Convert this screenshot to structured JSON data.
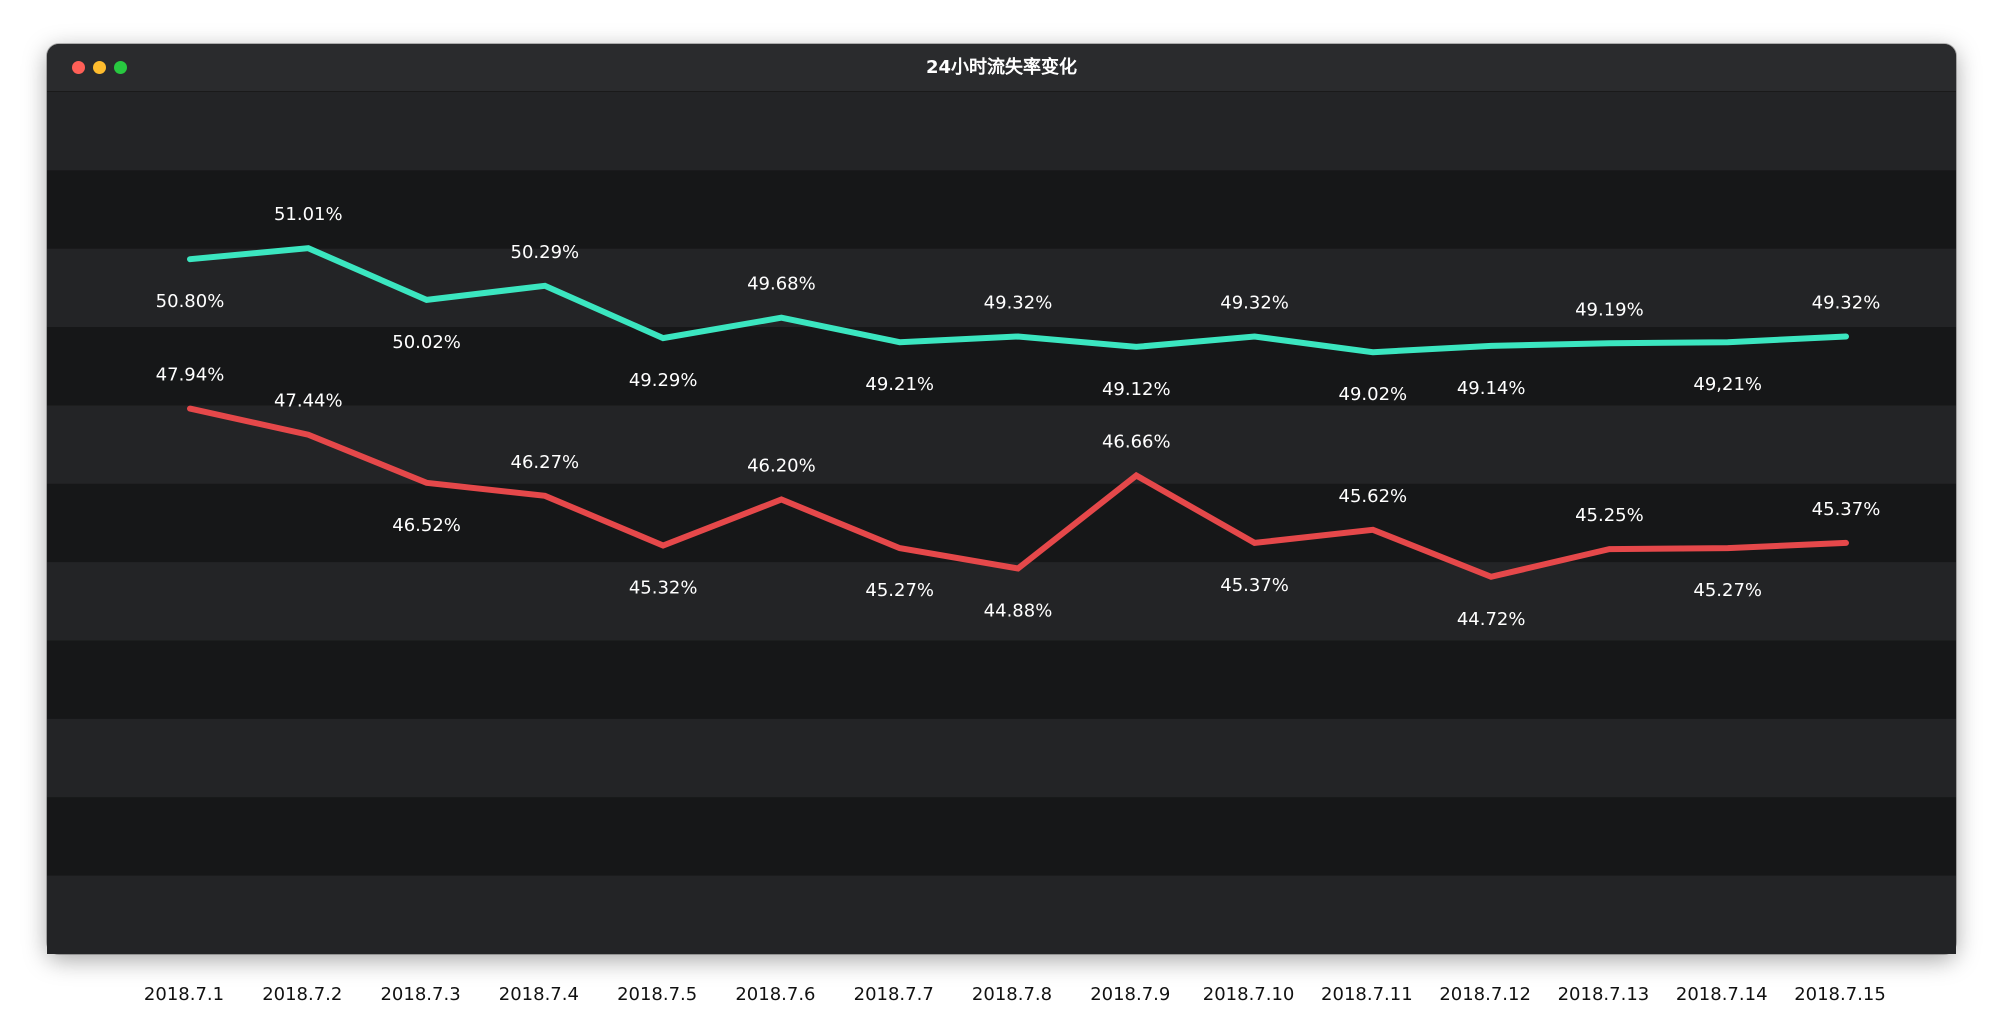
{
  "window": {
    "title": "24小时流失率变化"
  },
  "colors": {
    "series_1": "#3be6c0",
    "series_2": "#e5484a",
    "band_light": "#232426",
    "band_dark": "#161718",
    "label_text": "#ffffff",
    "axis_text": "#111111"
  },
  "chart_data": {
    "type": "line",
    "title": "24小时流失率变化",
    "xlabel": "",
    "ylabel": "",
    "grid": "alternating horizontal bands",
    "legend": "none",
    "ylim": [
      37.5,
      54.0
    ],
    "categories": [
      "2018.7.1",
      "2018.7.2",
      "2018.7.3",
      "2018.7.4",
      "2018.7.5",
      "2018.7.6",
      "2018.7.7",
      "2018.7.8",
      "2018.7.9",
      "2018.7.10",
      "2018.7.11",
      "2018.7.12",
      "2018.7.13",
      "2018.7.14",
      "2018.7.15"
    ],
    "series": [
      {
        "values": [
          50.8,
          51.01,
          50.02,
          50.29,
          49.29,
          49.68,
          49.21,
          49.32,
          49.12,
          49.32,
          49.02,
          49.14,
          49.19,
          49.21,
          49.32
        ],
        "labels": [
          "50.80%",
          "51.01%",
          "50.02%",
          "50.29%",
          "49.29%",
          "49.68%",
          "49.21%",
          "49.32%",
          "49.12%",
          "49.32%",
          "49.02%",
          "49.14%",
          "49.19%",
          "49,21%",
          "49.32%"
        ],
        "label_pos": [
          "below",
          "above",
          "below",
          "above",
          "below",
          "above",
          "below",
          "above",
          "below",
          "above",
          "below",
          "below",
          "above",
          "below",
          "above"
        ]
      },
      {
        "values": [
          47.94,
          47.44,
          46.52,
          46.27,
          45.32,
          46.2,
          45.27,
          44.88,
          46.66,
          45.37,
          45.62,
          44.72,
          45.25,
          45.27,
          45.37
        ],
        "labels": [
          "47.94%",
          "47.44%",
          "46.52%",
          "46.27%",
          "45.32%",
          "46.20%",
          "45.27%",
          "44.88%",
          "46.66%",
          "45.37%",
          "45.62%",
          "44.72%",
          "45.25%",
          "45.27%",
          "45.37%"
        ],
        "label_pos": [
          "above",
          "above",
          "below",
          "above",
          "below",
          "above",
          "below",
          "below",
          "above",
          "below",
          "above",
          "below",
          "above",
          "below",
          "above"
        ]
      }
    ]
  }
}
